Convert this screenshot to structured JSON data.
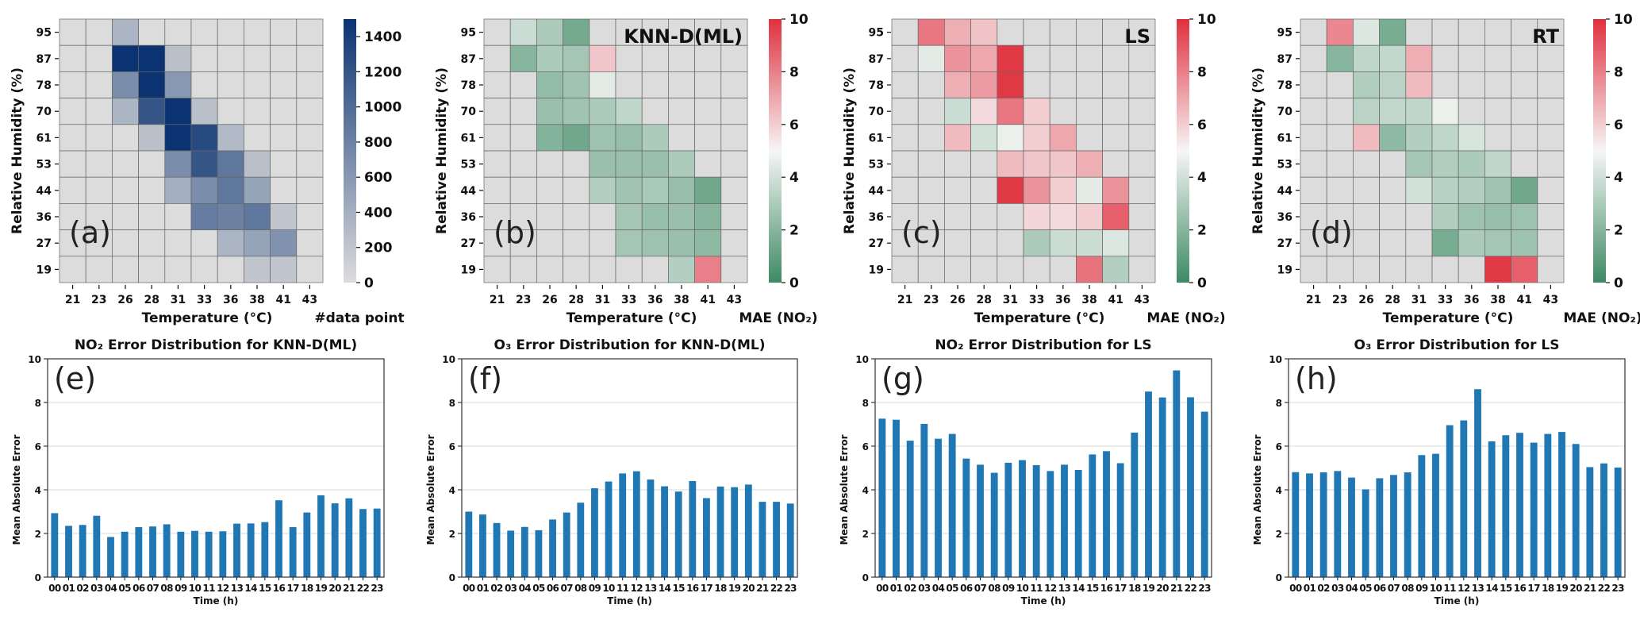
{
  "colors": {
    "heat_grey": "#dcdcdc",
    "count_low": "#dcdcdc",
    "count_high": "#0b3372",
    "mae_low": "#3d8a63",
    "mae_mid": "#f6f6f6",
    "mae_high": "#e0303f",
    "bar": "#1f77b4"
  },
  "chart_data": [
    {
      "type": "heatmap",
      "panel_label": "(a)",
      "method_label": "",
      "xlabel": "Temperature (°C)",
      "ylabel": "Relative Humidity (%)",
      "colorbar_label": "#data point",
      "x_ticks": [
        "21",
        "23",
        "26",
        "28",
        "31",
        "33",
        "36",
        "38",
        "41",
        "43"
      ],
      "y_ticks": [
        "95",
        "87",
        "78",
        "70",
        "61",
        "53",
        "44",
        "36",
        "27",
        "19"
      ],
      "colorbar_range": [
        0,
        1500
      ],
      "colorbar_ticks": [
        "0",
        "200",
        "400",
        "600",
        "800",
        "1000",
        "1200",
        "1400"
      ],
      "colormap": "grey-to-navy",
      "values": [
        [
          0,
          0,
          350,
          0,
          0,
          0,
          0,
          0,
          0,
          0
        ],
        [
          0,
          0,
          1500,
          1500,
          250,
          0,
          0,
          0,
          0,
          0
        ],
        [
          0,
          0,
          700,
          1500,
          600,
          0,
          0,
          0,
          0,
          0
        ],
        [
          0,
          0,
          350,
          1200,
          1500,
          250,
          0,
          0,
          0,
          0
        ],
        [
          0,
          0,
          0,
          250,
          1500,
          1300,
          300,
          0,
          0,
          0
        ],
        [
          0,
          0,
          0,
          0,
          700,
          1200,
          900,
          250,
          0,
          0
        ],
        [
          0,
          0,
          0,
          0,
          400,
          700,
          900,
          500,
          0,
          0
        ],
        [
          0,
          0,
          0,
          0,
          0,
          850,
          800,
          900,
          200,
          0
        ],
        [
          0,
          0,
          0,
          0,
          0,
          0,
          350,
          500,
          650,
          0
        ],
        [
          0,
          0,
          0,
          0,
          0,
          0,
          0,
          200,
          200,
          0
        ]
      ]
    },
    {
      "type": "heatmap",
      "panel_label": "(b)",
      "method_label": "KNN-D(ML)",
      "xlabel": "Temperature (°C)",
      "ylabel": "Relative Humidity (%)",
      "colorbar_label": "MAE (NO₂)",
      "x_ticks": [
        "21",
        "23",
        "26",
        "28",
        "31",
        "33",
        "36",
        "38",
        "41",
        "43"
      ],
      "y_ticks": [
        "95",
        "87",
        "78",
        "70",
        "61",
        "53",
        "44",
        "36",
        "27",
        "19"
      ],
      "colorbar_range": [
        0,
        10
      ],
      "colorbar_ticks": [
        "0",
        "2",
        "4",
        "6",
        "8",
        "10"
      ],
      "colormap": "green-white-red",
      "values": [
        [
          null,
          3.8,
          3.0,
          1.5,
          null,
          null,
          null,
          null,
          null,
          null
        ],
        [
          null,
          2.0,
          3.0,
          2.8,
          6.2,
          null,
          null,
          null,
          null,
          null
        ],
        [
          null,
          null,
          2.3,
          2.7,
          4.5,
          null,
          null,
          null,
          null,
          null
        ],
        [
          null,
          null,
          2.5,
          2.7,
          3.0,
          3.5,
          null,
          null,
          null,
          null
        ],
        [
          null,
          null,
          1.9,
          1.4,
          2.6,
          2.4,
          3.0,
          null,
          null,
          null
        ],
        [
          null,
          null,
          null,
          null,
          2.5,
          2.5,
          2.5,
          3.0,
          null,
          null
        ],
        [
          null,
          null,
          null,
          null,
          3.2,
          2.7,
          2.9,
          2.4,
          1.4,
          null
        ],
        [
          null,
          null,
          null,
          null,
          null,
          2.8,
          2.4,
          2.5,
          2.0,
          null
        ],
        [
          null,
          null,
          null,
          null,
          null,
          2.8,
          2.6,
          2.5,
          2.2,
          null
        ],
        [
          null,
          null,
          null,
          null,
          null,
          null,
          null,
          3.2,
          8.0,
          null
        ]
      ]
    },
    {
      "type": "heatmap",
      "panel_label": "(c)",
      "method_label": "LS",
      "xlabel": "Temperature (°C)",
      "ylabel": "Relative Humidity (%)",
      "colorbar_label": "MAE (NO₂)",
      "x_ticks": [
        "21",
        "23",
        "26",
        "28",
        "31",
        "33",
        "36",
        "38",
        "41",
        "43"
      ],
      "y_ticks": [
        "95",
        "87",
        "78",
        "70",
        "61",
        "53",
        "44",
        "36",
        "27",
        "19"
      ],
      "colorbar_range": [
        0,
        10
      ],
      "colorbar_ticks": [
        "0",
        "2",
        "4",
        "6",
        "8",
        "10"
      ],
      "colormap": "green-white-red",
      "values": [
        [
          null,
          8.2,
          6.8,
          6.3,
          null,
          null,
          null,
          null,
          null,
          null
        ],
        [
          null,
          4.5,
          7.5,
          7.0,
          9.8,
          null,
          null,
          null,
          null,
          null
        ],
        [
          null,
          null,
          6.8,
          7.3,
          9.8,
          null,
          null,
          null,
          null,
          null
        ],
        [
          null,
          null,
          3.8,
          5.7,
          8.2,
          6.0,
          null,
          null,
          null,
          null
        ],
        [
          null,
          null,
          6.5,
          4.0,
          4.7,
          6.0,
          7.0,
          null,
          null,
          null
        ],
        [
          null,
          null,
          null,
          null,
          6.5,
          6.2,
          6.2,
          6.8,
          null,
          null
        ],
        [
          null,
          null,
          null,
          null,
          9.8,
          7.5,
          6.0,
          4.5,
          7.5,
          null
        ],
        [
          null,
          null,
          null,
          null,
          null,
          5.8,
          5.7,
          6.0,
          8.8,
          null
        ],
        [
          null,
          null,
          null,
          null,
          null,
          3.0,
          3.8,
          3.8,
          4.3,
          null
        ],
        [
          null,
          null,
          null,
          null,
          null,
          null,
          null,
          8.3,
          3.2,
          null
        ]
      ]
    },
    {
      "type": "heatmap",
      "panel_label": "(d)",
      "method_label": "RT",
      "xlabel": "Temperature (°C)",
      "ylabel": "Relative Humidity (%)",
      "colorbar_label": "MAE (NO₂)",
      "x_ticks": [
        "21",
        "23",
        "26",
        "28",
        "31",
        "33",
        "36",
        "38",
        "41",
        "43"
      ],
      "y_ticks": [
        "95",
        "87",
        "78",
        "70",
        "61",
        "53",
        "44",
        "36",
        "27",
        "19"
      ],
      "colorbar_range": [
        0,
        10
      ],
      "colorbar_ticks": [
        "0",
        "2",
        "4",
        "6",
        "8",
        "10"
      ],
      "colormap": "green-white-red",
      "values": [
        [
          null,
          7.8,
          4.3,
          1.6,
          null,
          null,
          null,
          null,
          null,
          null
        ],
        [
          null,
          2.0,
          3.5,
          3.6,
          6.8,
          null,
          null,
          null,
          null,
          null
        ],
        [
          null,
          null,
          3.1,
          3.4,
          6.5,
          null,
          null,
          null,
          null,
          null
        ],
        [
          null,
          null,
          3.4,
          3.6,
          3.5,
          4.7,
          null,
          null,
          null,
          null
        ],
        [
          null,
          null,
          6.5,
          2.2,
          3.2,
          3.5,
          4.2,
          null,
          null,
          null
        ],
        [
          null,
          null,
          null,
          null,
          2.8,
          3.1,
          3.0,
          3.5,
          null,
          null
        ],
        [
          null,
          null,
          null,
          null,
          4.0,
          3.3,
          3.2,
          2.7,
          1.4,
          null
        ],
        [
          null,
          null,
          null,
          null,
          null,
          3.1,
          2.6,
          2.4,
          2.6,
          null
        ],
        [
          null,
          null,
          null,
          null,
          null,
          1.6,
          3.0,
          2.8,
          2.6,
          null
        ],
        [
          null,
          null,
          null,
          null,
          null,
          null,
          null,
          9.8,
          8.8,
          null
        ]
      ]
    },
    {
      "type": "bar",
      "panel_label": "(e)",
      "title": "NO₂ Error Distribution for KNN-D(ML)",
      "xlabel": "Time (h)",
      "ylabel": "Mean Absolute Error",
      "ylim": [
        0,
        10
      ],
      "y_ticks": [
        "0",
        "2",
        "4",
        "6",
        "8",
        "10"
      ],
      "grid": true,
      "categories": [
        "00",
        "01",
        "02",
        "03",
        "04",
        "05",
        "06",
        "07",
        "08",
        "09",
        "10",
        "11",
        "12",
        "13",
        "14",
        "15",
        "16",
        "17",
        "18",
        "19",
        "20",
        "21",
        "22",
        "23"
      ],
      "values": [
        2.93,
        2.35,
        2.39,
        2.81,
        1.84,
        2.08,
        2.29,
        2.32,
        2.42,
        2.08,
        2.12,
        2.08,
        2.1,
        2.45,
        2.46,
        2.52,
        3.52,
        2.29,
        2.96,
        3.75,
        3.38,
        3.61,
        3.12,
        3.14
      ]
    },
    {
      "type": "bar",
      "panel_label": "(f)",
      "title": "O₃ Error Distribution for KNN-D(ML)",
      "xlabel": "Time (h)",
      "ylabel": "Mean Absolute Error",
      "ylim": [
        0,
        10
      ],
      "y_ticks": [
        "0",
        "2",
        "4",
        "6",
        "8",
        "10"
      ],
      "grid": true,
      "categories": [
        "00",
        "01",
        "02",
        "03",
        "04",
        "05",
        "06",
        "07",
        "08",
        "09",
        "10",
        "11",
        "12",
        "13",
        "14",
        "15",
        "16",
        "17",
        "18",
        "19",
        "20",
        "21",
        "22",
        "23"
      ],
      "values": [
        3.0,
        2.87,
        2.48,
        2.13,
        2.3,
        2.15,
        2.64,
        2.96,
        3.41,
        4.07,
        4.38,
        4.75,
        4.85,
        4.47,
        4.16,
        3.92,
        4.4,
        3.62,
        4.15,
        4.12,
        4.24,
        3.45,
        3.45,
        3.37
      ]
    },
    {
      "type": "bar",
      "panel_label": "(g)",
      "title": "NO₂ Error Distribution for LS",
      "xlabel": "Time (h)",
      "ylabel": "Mean Absolute Error",
      "ylim": [
        0,
        10
      ],
      "y_ticks": [
        "0",
        "2",
        "4",
        "6",
        "8",
        "10"
      ],
      "grid": true,
      "categories": [
        "00",
        "01",
        "02",
        "03",
        "04",
        "05",
        "06",
        "07",
        "08",
        "09",
        "10",
        "11",
        "12",
        "13",
        "14",
        "15",
        "16",
        "17",
        "18",
        "19",
        "20",
        "21",
        "22",
        "23"
      ],
      "values": [
        7.26,
        7.21,
        6.25,
        7.02,
        6.34,
        6.56,
        5.43,
        5.15,
        4.78,
        5.24,
        5.36,
        5.13,
        4.86,
        5.15,
        4.91,
        5.62,
        5.77,
        5.22,
        6.62,
        8.5,
        8.23,
        9.47,
        8.24,
        7.58
      ]
    },
    {
      "type": "bar",
      "panel_label": "(h)",
      "title": "O₃ Error Distribution for LS",
      "xlabel": "Time (h)",
      "ylabel": "Mean Absolute Error",
      "ylim": [
        0,
        10
      ],
      "y_ticks": [
        "0",
        "2",
        "4",
        "6",
        "8",
        "10"
      ],
      "grid": true,
      "categories": [
        "00",
        "01",
        "02",
        "03",
        "04",
        "05",
        "06",
        "07",
        "08",
        "09",
        "10",
        "11",
        "12",
        "13",
        "14",
        "15",
        "16",
        "17",
        "18",
        "19",
        "20",
        "21",
        "22",
        "23"
      ],
      "values": [
        4.81,
        4.75,
        4.8,
        4.86,
        4.56,
        4.02,
        4.53,
        4.68,
        4.8,
        5.59,
        5.65,
        6.96,
        7.18,
        8.61,
        6.22,
        6.5,
        6.61,
        6.16,
        6.56,
        6.65,
        6.1,
        5.04,
        5.21,
        5.02
      ]
    }
  ]
}
